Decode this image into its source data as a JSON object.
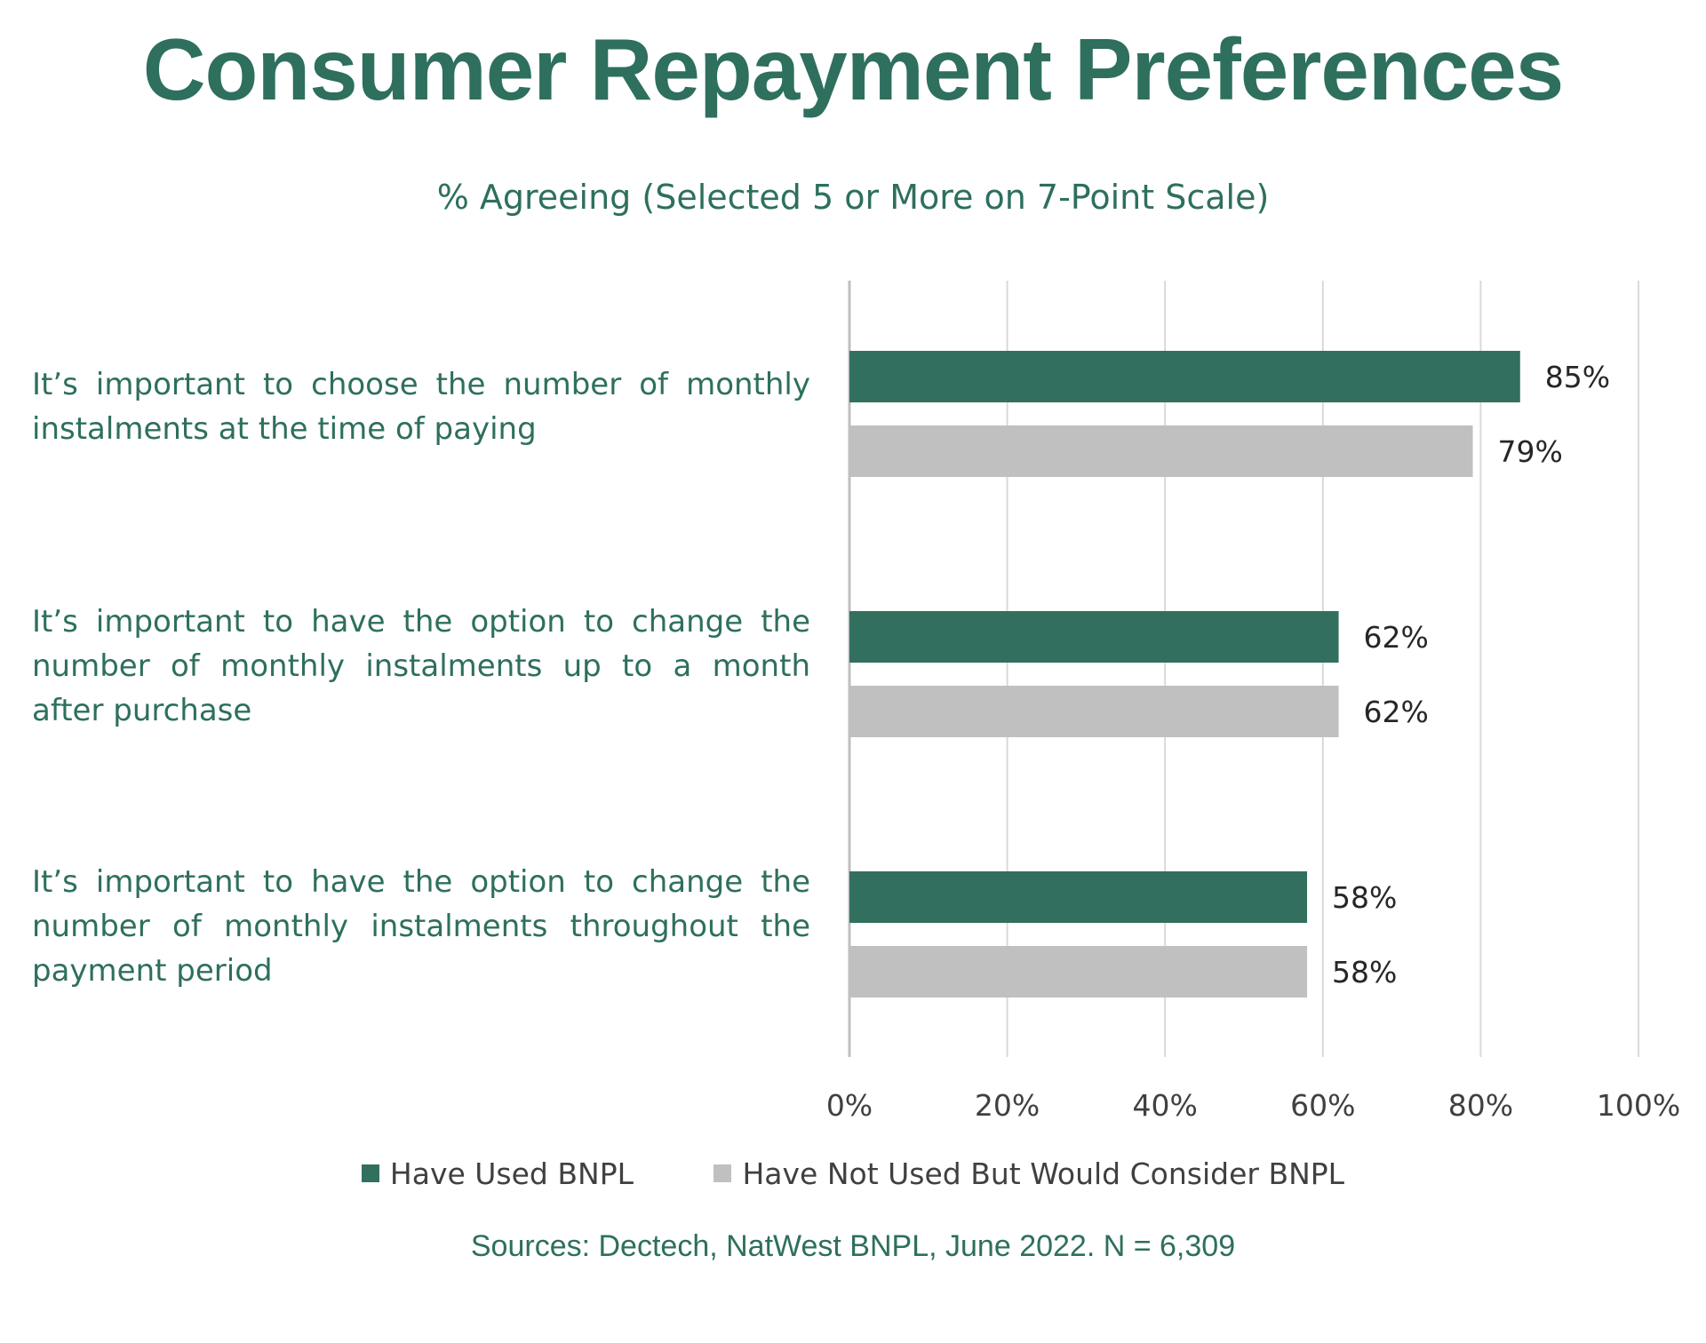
{
  "title": "Consumer Repayment Preferences",
  "subtitle": "% Agreeing (Selected 5 or More on 7-Point Scale)",
  "source": "Sources: Dectech, NatWest BNPL, June 2022. N = 6,309",
  "colors": {
    "accent": "#336f5f",
    "secondary": "#c0c0c0",
    "text_green": "#2e6f5e",
    "gridline": "#d9d9d9"
  },
  "chart_data": {
    "type": "bar",
    "orientation": "horizontal",
    "categories": [
      "It’s important to choose the number of monthly instalments at the time of paying",
      "It’s important to have the option to change the number of monthly instalments up to a month after purchase",
      "It’s important to have the option to change the number of monthly instalments throughout the payment period"
    ],
    "series": [
      {
        "name": "Have Used BNPL",
        "values": [
          85,
          62,
          58
        ],
        "labels": [
          "85%",
          "62%",
          "58%"
        ],
        "color": "#336f5f"
      },
      {
        "name": "Have Not Used But Would Consider BNPL",
        "values": [
          79,
          62,
          58
        ],
        "labels": [
          "79%",
          "62%",
          "58%"
        ],
        "color": "#c0c0c0"
      }
    ],
    "xlim": [
      0,
      100
    ],
    "xticks": [
      0,
      20,
      40,
      60,
      80,
      100
    ],
    "xtick_labels": [
      "0%",
      "20%",
      "40%",
      "60%",
      "80%",
      "100%"
    ],
    "grid": true,
    "legend_position": "bottom"
  }
}
